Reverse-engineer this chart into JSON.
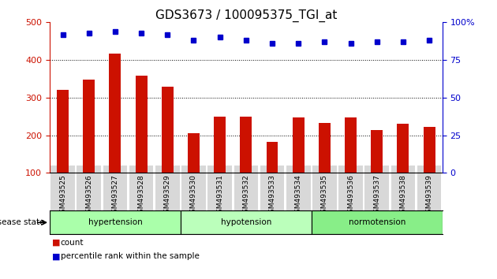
{
  "title": "GDS3673 / 100095375_TGI_at",
  "samples": [
    "GSM493525",
    "GSM493526",
    "GSM493527",
    "GSM493528",
    "GSM493529",
    "GSM493530",
    "GSM493531",
    "GSM493532",
    "GSM493533",
    "GSM493534",
    "GSM493535",
    "GSM493536",
    "GSM493537",
    "GSM493538",
    "GSM493539"
  ],
  "bar_values": [
    320,
    348,
    418,
    358,
    330,
    205,
    250,
    250,
    182,
    248,
    232,
    248,
    215,
    230,
    222
  ],
  "percentile_values": [
    92,
    93,
    94,
    93,
    92,
    88,
    90,
    88,
    86,
    86,
    87,
    86,
    87,
    87,
    88
  ],
  "disease_groups": [
    {
      "label": "hypertension",
      "start": 0,
      "end": 5,
      "color": "#aaffaa"
    },
    {
      "label": "hypotension",
      "start": 5,
      "end": 10,
      "color": "#bbffbb"
    },
    {
      "label": "normotension",
      "start": 10,
      "end": 15,
      "color": "#88ee88"
    }
  ],
  "bar_color": "#cc1100",
  "dot_color": "#0000cc",
  "left_ylim": [
    100,
    500
  ],
  "left_yticks": [
    100,
    200,
    300,
    400,
    500
  ],
  "right_ylim": [
    0,
    100
  ],
  "right_yticks": [
    0,
    25,
    50,
    75,
    100
  ],
  "title_fontsize": 11,
  "tick_label_fontsize": 6.5,
  "axis_label_color_left": "#cc1100",
  "axis_label_color_right": "#0000cc",
  "background_color": "#ffffff",
  "grid_color": "#000000",
  "disease_label": "disease state",
  "bar_width": 0.45,
  "dot_size": 4,
  "legend_fontsize": 7,
  "group_colors": [
    "#aaffaa",
    "#bbffbb",
    "#88ee88"
  ]
}
